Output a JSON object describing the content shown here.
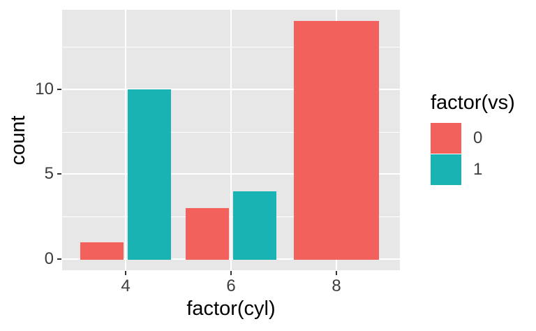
{
  "chart_data": {
    "type": "bar",
    "title": "",
    "xlabel": "factor(cyl)",
    "ylabel": "count",
    "categories": [
      "4",
      "6",
      "8"
    ],
    "series": [
      {
        "name": "0",
        "color": "#F3615C",
        "values": [
          1,
          3,
          14
        ]
      },
      {
        "name": "1",
        "color": "#19B3B4",
        "values": [
          10,
          4,
          0
        ]
      }
    ],
    "y_ticks": [
      0,
      5,
      10
    ],
    "y_minor": [
      2.5,
      7.5,
      12.5
    ],
    "ylim": [
      -0.7,
      14.7
    ],
    "bar_position": "dodge",
    "grid": "on",
    "legend_title": "factor(vs)",
    "legend_position": "right",
    "colors": {
      "panel_background": "#E7E7E7",
      "grid_line": "#FFFFFF",
      "tick_mark": "#333333",
      "tick_label": "#3C3C3C",
      "axis_title": "#000000"
    }
  }
}
